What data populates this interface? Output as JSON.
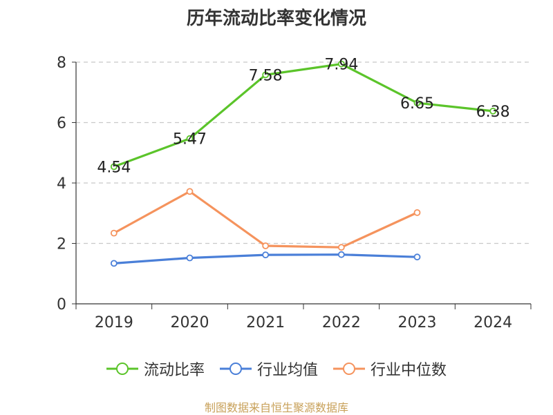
{
  "chart_data": {
    "type": "line",
    "title": "历年流动比率变化情况",
    "categories": [
      "2019",
      "2020",
      "2021",
      "2022",
      "2023",
      "2024"
    ],
    "ylim": [
      0,
      8
    ],
    "yticks": [
      0,
      2,
      4,
      6,
      8
    ],
    "grid": true,
    "legend_position": "bottom",
    "series": [
      {
        "name": "流动比率",
        "color": "#5bc42a",
        "show_labels": true,
        "values": [
          4.54,
          5.47,
          7.58,
          7.94,
          6.65,
          6.38
        ],
        "labels": [
          "4.54",
          "5.47",
          "7.58",
          "7.94",
          "6.65",
          "6.38"
        ]
      },
      {
        "name": "行业均值",
        "color": "#4a7fd8",
        "show_labels": false,
        "values": [
          1.34,
          1.52,
          1.62,
          1.63,
          1.55,
          null
        ]
      },
      {
        "name": "行业中位数",
        "color": "#f5935d",
        "show_labels": false,
        "values": [
          2.34,
          3.72,
          1.92,
          1.87,
          3.02,
          null
        ]
      }
    ]
  },
  "source": "制图数据来自恒生聚源数据库"
}
